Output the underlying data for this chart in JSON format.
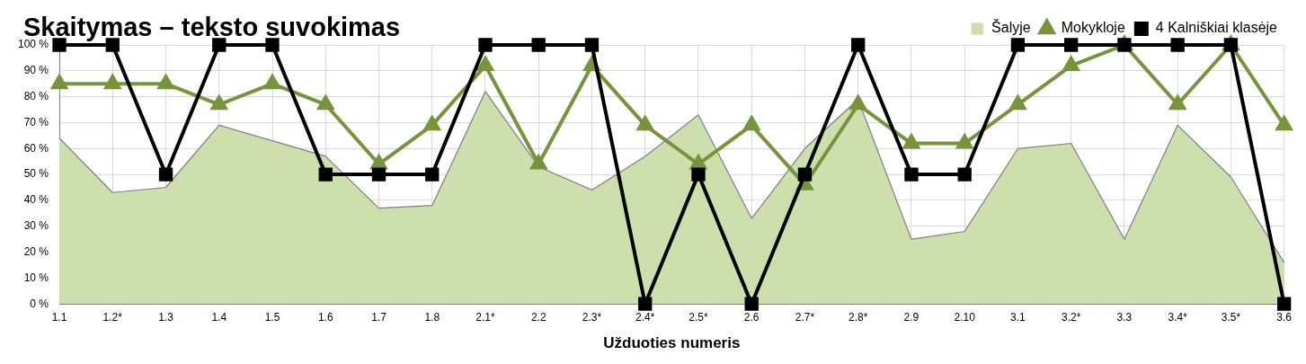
{
  "chart_data": {
    "type": "line",
    "title": "Skaitymas – teksto suvokimas",
    "xlabel": "Užduoties numeris",
    "categories": [
      "1.1",
      "1.2*",
      "1.3",
      "1.4",
      "1.5",
      "1.6",
      "1.7",
      "1.8",
      "2.1*",
      "2.2",
      "2.3*",
      "2.4*",
      "2.5*",
      "2.6",
      "2.7*",
      "2.8*",
      "2.9",
      "2.10",
      "3.1",
      "3.2*",
      "3.3",
      "3.4*",
      "3.5*",
      "3.6"
    ],
    "series": [
      {
        "name": "Šalyje",
        "type": "area",
        "color": "#cddfac",
        "marker": "none",
        "values": [
          64,
          43,
          45,
          69,
          63,
          57,
          37,
          38,
          82,
          53,
          44,
          57,
          73,
          33,
          60,
          79,
          25,
          28,
          60,
          62,
          25,
          69,
          49,
          16
        ]
      },
      {
        "name": "Mokykloje",
        "type": "line",
        "color": "#77933c",
        "marker": "triangle",
        "values": [
          85,
          85,
          85,
          77,
          85,
          77,
          54,
          69,
          92,
          54,
          92,
          69,
          54,
          69,
          46,
          77,
          62,
          62,
          77,
          92,
          100,
          77,
          100,
          69
        ]
      },
      {
        "name": "4 Kalniškiai klasėje",
        "type": "line",
        "color": "#000000",
        "marker": "square",
        "values": [
          100,
          100,
          50,
          100,
          100,
          50,
          50,
          50,
          100,
          100,
          100,
          0,
          50,
          0,
          50,
          100,
          50,
          50,
          100,
          100,
          100,
          100,
          100,
          0
        ]
      }
    ],
    "ylim": [
      0,
      100
    ],
    "yticks": [
      {
        "value": 0,
        "label": "0 %"
      },
      {
        "value": 10,
        "label": "10 %"
      },
      {
        "value": 20,
        "label": "20 %"
      },
      {
        "value": 30,
        "label": "30 %"
      },
      {
        "value": 40,
        "label": "40 %"
      },
      {
        "value": 50,
        "label": "50 %"
      },
      {
        "value": 60,
        "label": "60 %"
      },
      {
        "value": 70,
        "label": "70 %"
      },
      {
        "value": 80,
        "label": "80 %"
      },
      {
        "value": 90,
        "label": "90 %"
      },
      {
        "value": 100,
        "label": "100 %"
      }
    ],
    "grid": true,
    "legend": "top right"
  }
}
